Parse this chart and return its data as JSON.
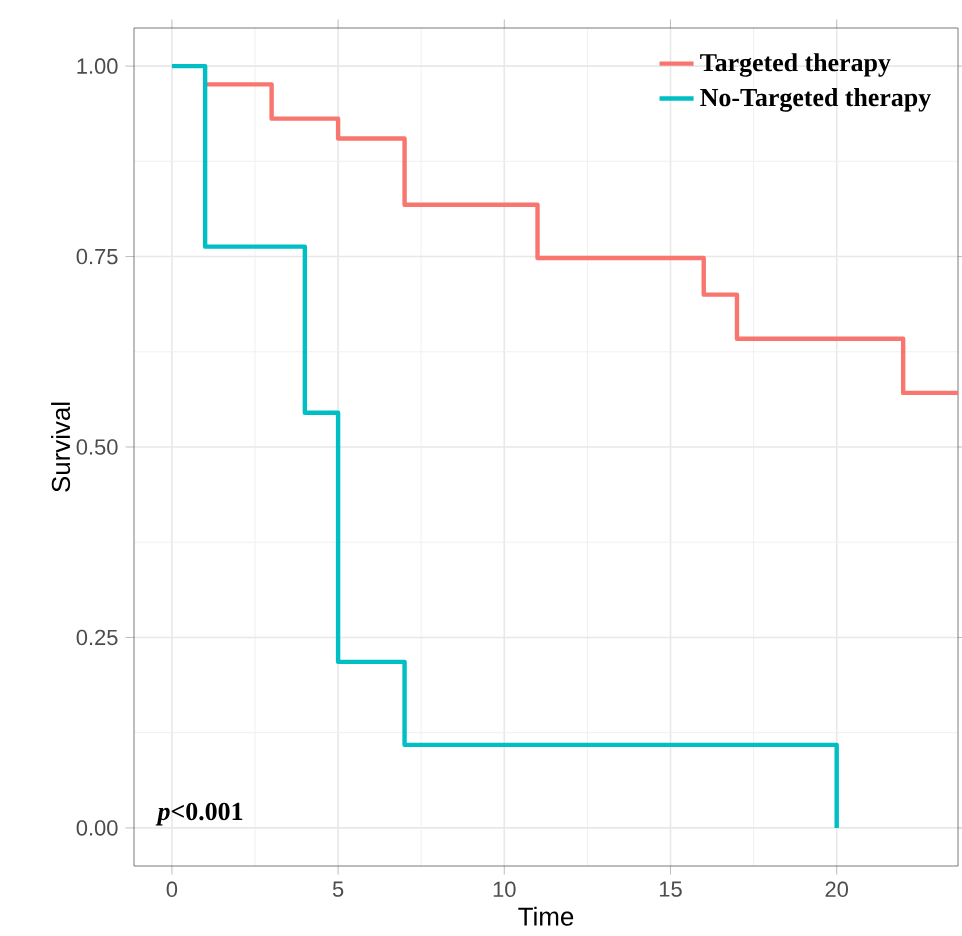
{
  "chart_data": {
    "type": "step",
    "xlabel": "Time",
    "ylabel": "Survival",
    "xlim": [
      -1.14,
      23.65
    ],
    "ylim": [
      -0.05,
      1.05
    ],
    "xticks": [
      0,
      5,
      10,
      15,
      20
    ],
    "yticks": [
      {
        "value": 0,
        "label": "0.00"
      },
      {
        "value": 0.25,
        "label": "0.25"
      },
      {
        "value": 0.5,
        "label": "0.50"
      },
      {
        "value": 0.75,
        "label": "0.75"
      },
      {
        "value": 1,
        "label": "1.00"
      }
    ],
    "grid": true,
    "legend": "top right",
    "annotations": [
      "*p*<0.001"
    ],
    "series": [
      {
        "name": "Targeted therapy",
        "color": "#f8766d",
        "x": [
          1,
          3,
          5,
          7,
          11,
          16,
          17,
          22,
          23.65
        ],
        "values": [
          0.976,
          0.931,
          0.905,
          0.818,
          0.748,
          0.7,
          0.642,
          0.571,
          0.571
        ]
      },
      {
        "name": "No-Targeted therapy",
        "color": "#00bfc4",
        "x": [
          0,
          1,
          4,
          5,
          7,
          20
        ],
        "values": [
          1,
          0.763,
          0.545,
          0.218,
          0.109,
          0
        ]
      }
    ]
  }
}
